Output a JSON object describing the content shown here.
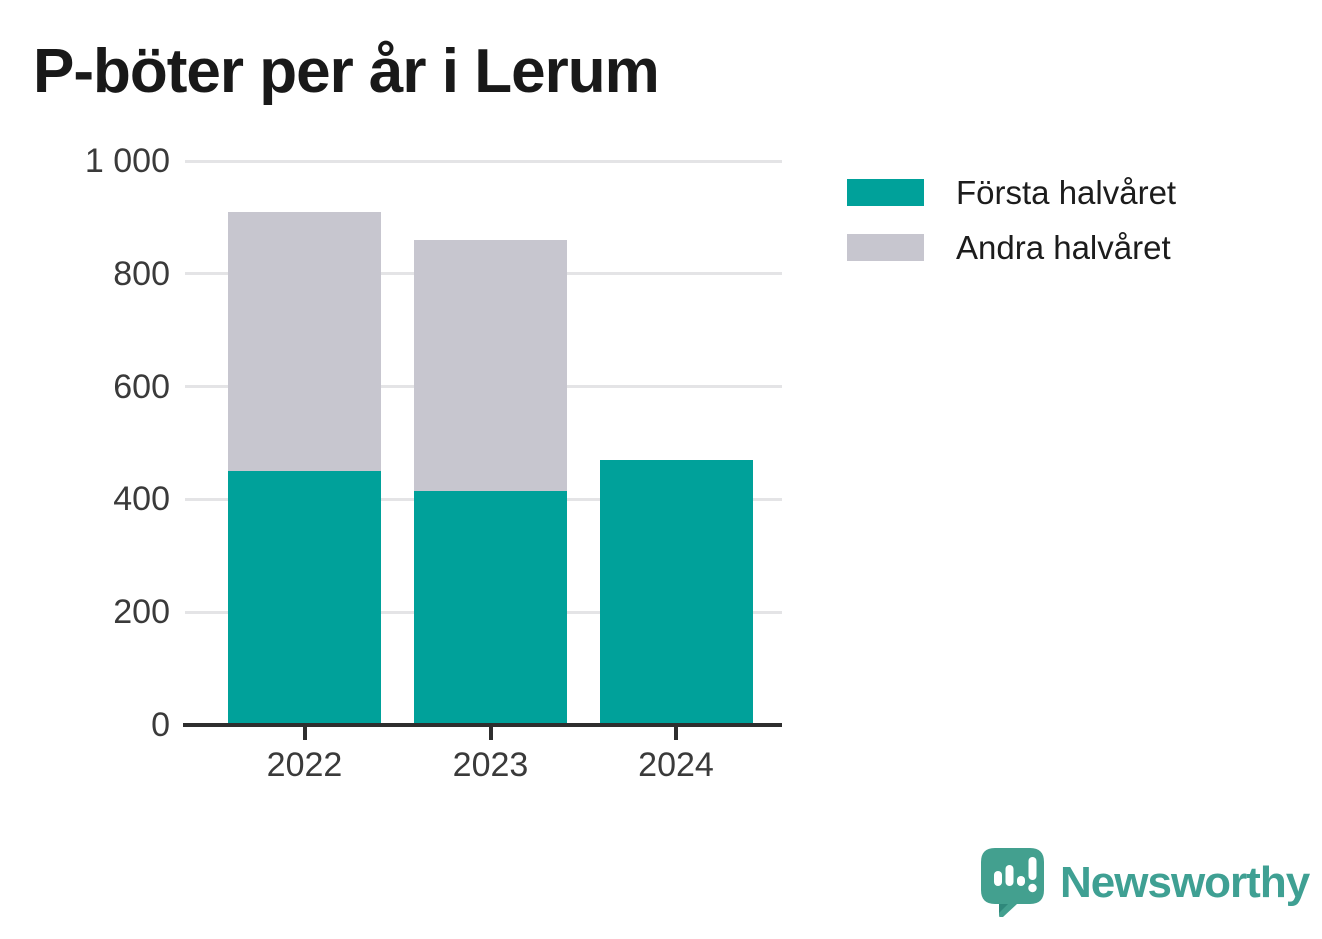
{
  "chart_data": {
    "type": "bar",
    "stacked": true,
    "title": "P-böter per år i Lerum",
    "categories": [
      "2022",
      "2023",
      "2024"
    ],
    "series": [
      {
        "name": "Första halvåret",
        "color": "#00A19A",
        "values": [
          450,
          415,
          470
        ]
      },
      {
        "name": "Andra halvåret",
        "color": "#C7C6CF",
        "values": [
          460,
          445,
          0
        ]
      }
    ],
    "xlabel": "",
    "ylabel": "",
    "ylim": [
      0,
      1000
    ],
    "yticks": [
      0,
      200,
      400,
      600,
      800,
      1000
    ],
    "ytick_labels": [
      "0",
      "200",
      "400",
      "600",
      "800",
      "1 000"
    ],
    "grid": true,
    "legend_position": "right",
    "axis_color": "#2e2e2e",
    "tick_label_color": "#3a3a3a"
  },
  "branding": {
    "name": "Newsworthy",
    "icon": "speech-bubble-bar-chart-icon",
    "icon_color": "#43A08F",
    "icon_accent_color": "#2E8579",
    "text_color": "#3FA093"
  }
}
